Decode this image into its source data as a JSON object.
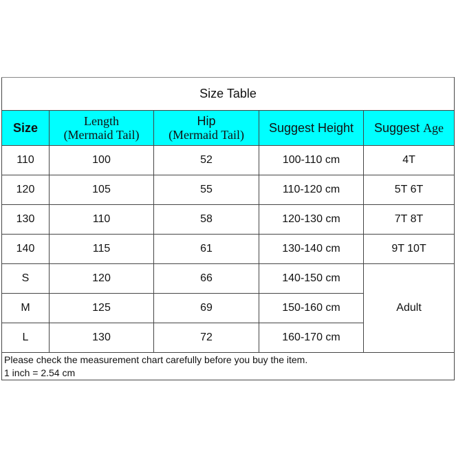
{
  "title": "Size Table",
  "header": {
    "size": "Size",
    "length": "Length",
    "length_sub": "(Mermaid Tail)",
    "hip": "Hip",
    "hip_sub": "(Mermaid Tail)",
    "height": "Suggest Height",
    "age_a": "Suggest",
    "age_b": "Age"
  },
  "rows": [
    {
      "size": "110",
      "length": "100",
      "hip": "52",
      "height": "100-110 cm",
      "age": "4T"
    },
    {
      "size": "120",
      "length": "105",
      "hip": "55",
      "height": "110-120 cm",
      "age": "5T 6T"
    },
    {
      "size": "130",
      "length": "110",
      "hip": "58",
      "height": "120-130 cm",
      "age": "7T 8T"
    },
    {
      "size": "140",
      "length": "115",
      "hip": "61",
      "height": "130-140 cm",
      "age": "9T 10T"
    },
    {
      "size": "S",
      "length": "120",
      "hip": "66",
      "height": "140-150 cm",
      "age": "Adult"
    },
    {
      "size": "M",
      "length": "125",
      "hip": "69",
      "height": "150-160 cm"
    },
    {
      "size": "L",
      "length": "130",
      "hip": "72",
      "height": "160-170 cm"
    }
  ],
  "note": {
    "line1": "Please check the measurement chart carefully before you buy the item.",
    "line2": "1 inch = 2.54 cm"
  },
  "colors": {
    "header_bg": "#00ffff"
  }
}
